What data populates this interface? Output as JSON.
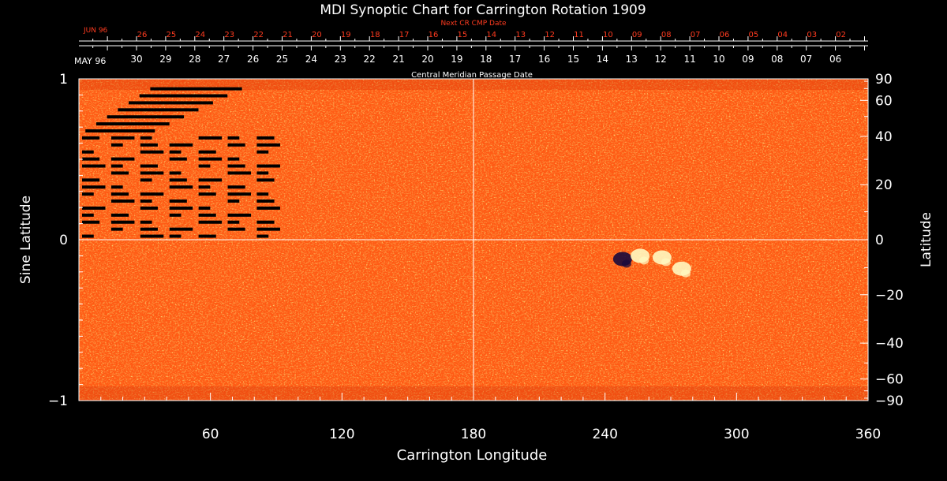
{
  "chart_data": {
    "type": "heatmap",
    "title": "MDI Synoptic Chart for Carrington Rotation 1909",
    "xlabel": "Carrington Longitude",
    "ylabel_left": "Sine Latitude",
    "ylabel_right": "Latitude",
    "xlim": [
      0,
      360
    ],
    "ylim": [
      -1,
      1
    ],
    "x_ticks": [
      60,
      120,
      180,
      240,
      300,
      360
    ],
    "y_left_ticks": [
      {
        "value": 1,
        "label": "1"
      },
      {
        "value": 0,
        "label": "0"
      },
      {
        "value": -1,
        "label": "−1"
      }
    ],
    "y_right_ticks": [
      {
        "lat": 90,
        "label": "90"
      },
      {
        "lat": 60,
        "label": "60"
      },
      {
        "lat": 40,
        "label": "40"
      },
      {
        "lat": 20,
        "label": "20"
      },
      {
        "lat": 0,
        "label": "0"
      },
      {
        "lat": -20,
        "label": "−20"
      },
      {
        "lat": -40,
        "label": "−40"
      },
      {
        "lat": -60,
        "label": "−60"
      },
      {
        "lat": -90,
        "label": "−90"
      }
    ],
    "central_meridian_label": "Central Meridian Passage Date",
    "next_cr_label": "Next CR CMP Date",
    "cmp_month": "MAY 96",
    "cmp_dates": [
      "30",
      "29",
      "28",
      "27",
      "26",
      "25",
      "24",
      "23",
      "22",
      "21",
      "20",
      "19",
      "18",
      "17",
      "16",
      "15",
      "14",
      "13",
      "12",
      "11",
      "10",
      "09",
      "08",
      "07",
      "06"
    ],
    "next_cr_month": "JUN 96",
    "next_cr_dates": [
      "26",
      "25",
      "24",
      "23",
      "22",
      "21",
      "20",
      "19",
      "18",
      "17",
      "16",
      "15",
      "14",
      "13",
      "12",
      "11",
      "10",
      "09",
      "08",
      "07",
      "06",
      "05",
      "04",
      "03",
      "02"
    ],
    "grid_lines": {
      "longitude": 180,
      "sine_latitude": 0
    },
    "colors": {
      "background_field": "#ff5a14",
      "negative_polarity": "#1a0a3c",
      "positive_polarity": "#fff8c0",
      "axes": "#ffffff",
      "next_cr": "#ff3b1f"
    },
    "active_regions": [
      {
        "longitude": 248,
        "sine_latitude": -0.12,
        "polarity": "negative"
      },
      {
        "longitude": 256,
        "sine_latitude": -0.1,
        "polarity": "positive"
      },
      {
        "longitude": 266,
        "sine_latitude": -0.11,
        "polarity": "positive"
      },
      {
        "longitude": 275,
        "sine_latitude": -0.18,
        "polarity": "positive"
      }
    ],
    "data_gaps_region": {
      "longitude_range": [
        0,
        93
      ],
      "sine_latitude_range": [
        0,
        0.96
      ]
    }
  }
}
